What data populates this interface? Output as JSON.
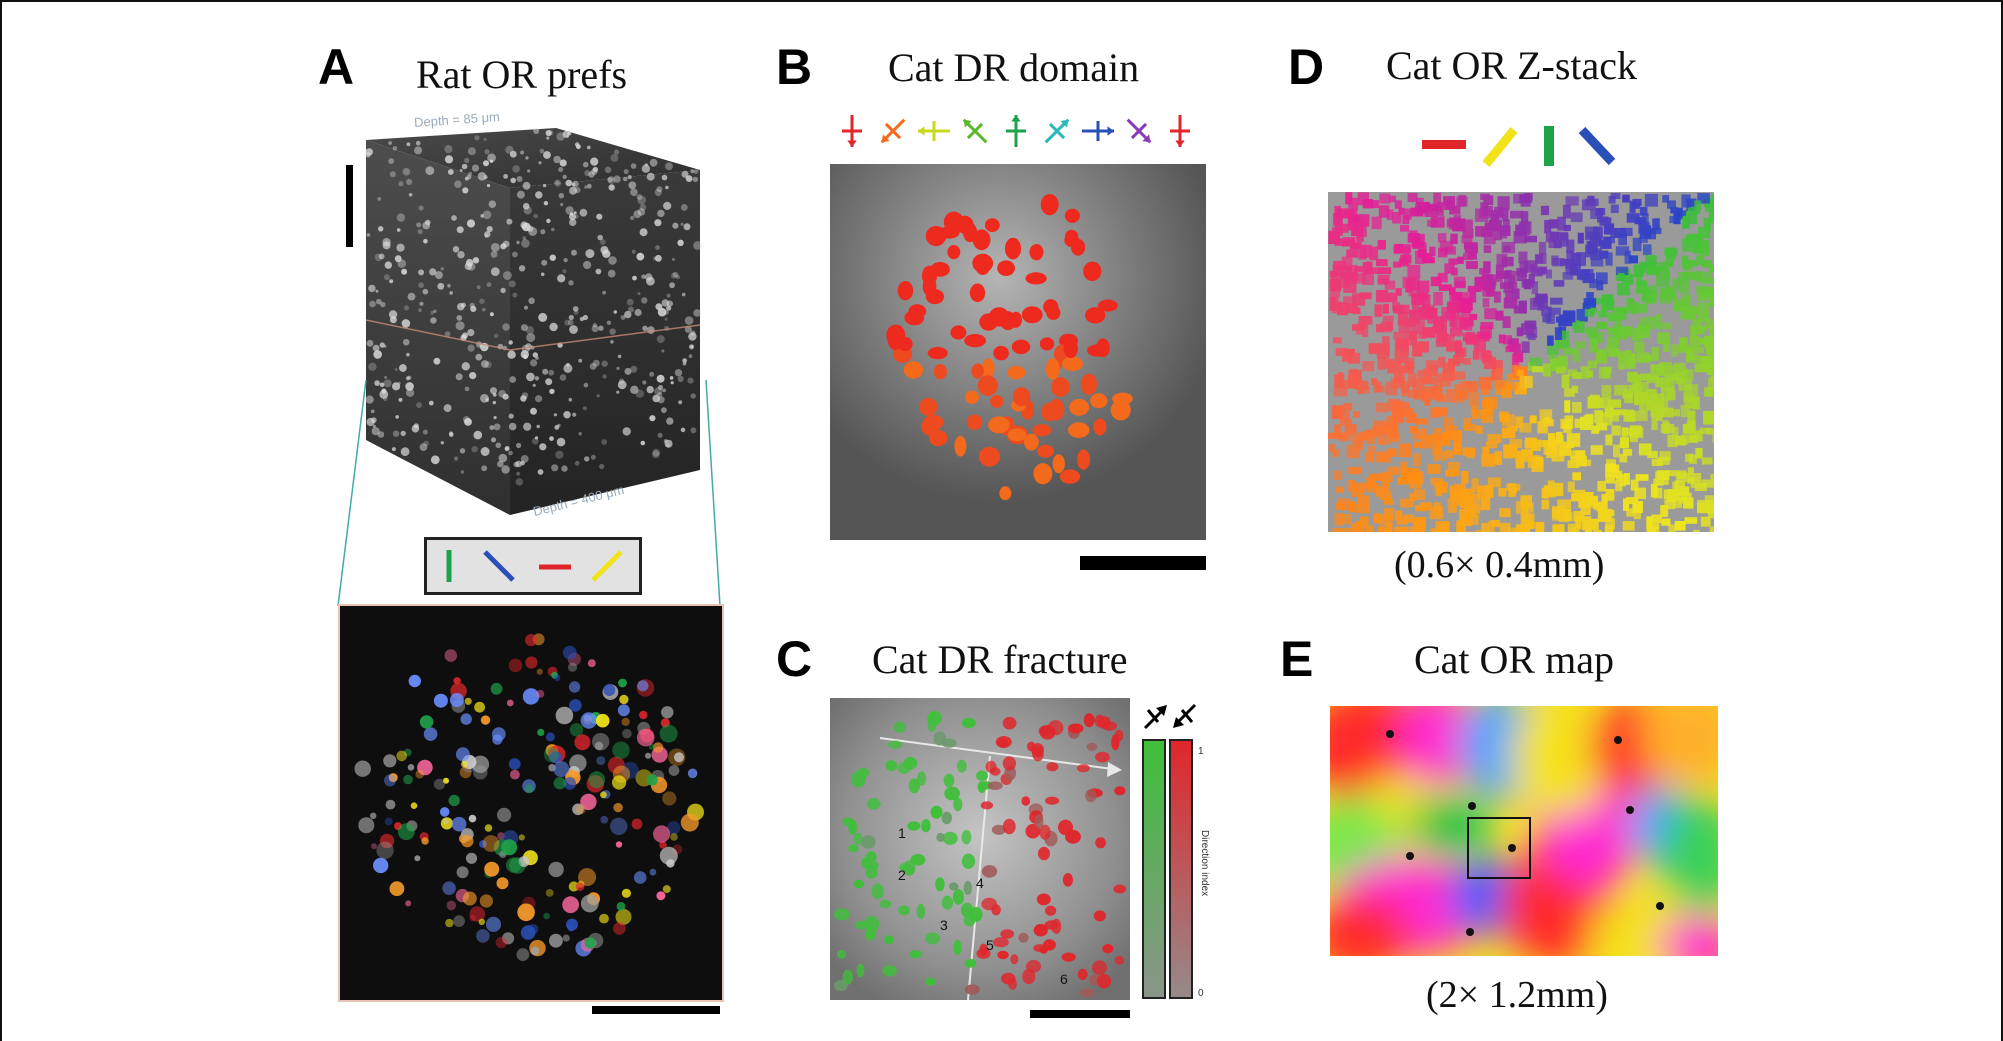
{
  "panels": {
    "A": {
      "letter": "A",
      "title": "Rat OR prefs",
      "depth_top": "Depth = 85 μm",
      "depth_bottom": "Depth = 400 μm"
    },
    "B": {
      "letter": "B",
      "title": "Cat DR domain"
    },
    "C": {
      "letter": "C",
      "title": "Cat DR fracture",
      "cluster_labels": [
        "1",
        "2",
        "3",
        "4",
        "5",
        "6"
      ],
      "colorbar_label": "Direction index",
      "colorbar_max": "1",
      "colorbar_min": "0"
    },
    "D": {
      "letter": "D",
      "title": "Cat OR Z-stack",
      "caption": "(0.6× 0.4mm)"
    },
    "E": {
      "letter": "E",
      "title": "Cat OR map",
      "caption": "(2× 1.2mm)"
    }
  },
  "colors": {
    "orient_green": "#1fa34a",
    "orient_blue": "#2a4fb8",
    "orient_red": "#e0262b",
    "orient_yellow": "#f2e21a",
    "dr_red": "#ee2a1f",
    "dr_orange": "#f36a1c"
  }
}
